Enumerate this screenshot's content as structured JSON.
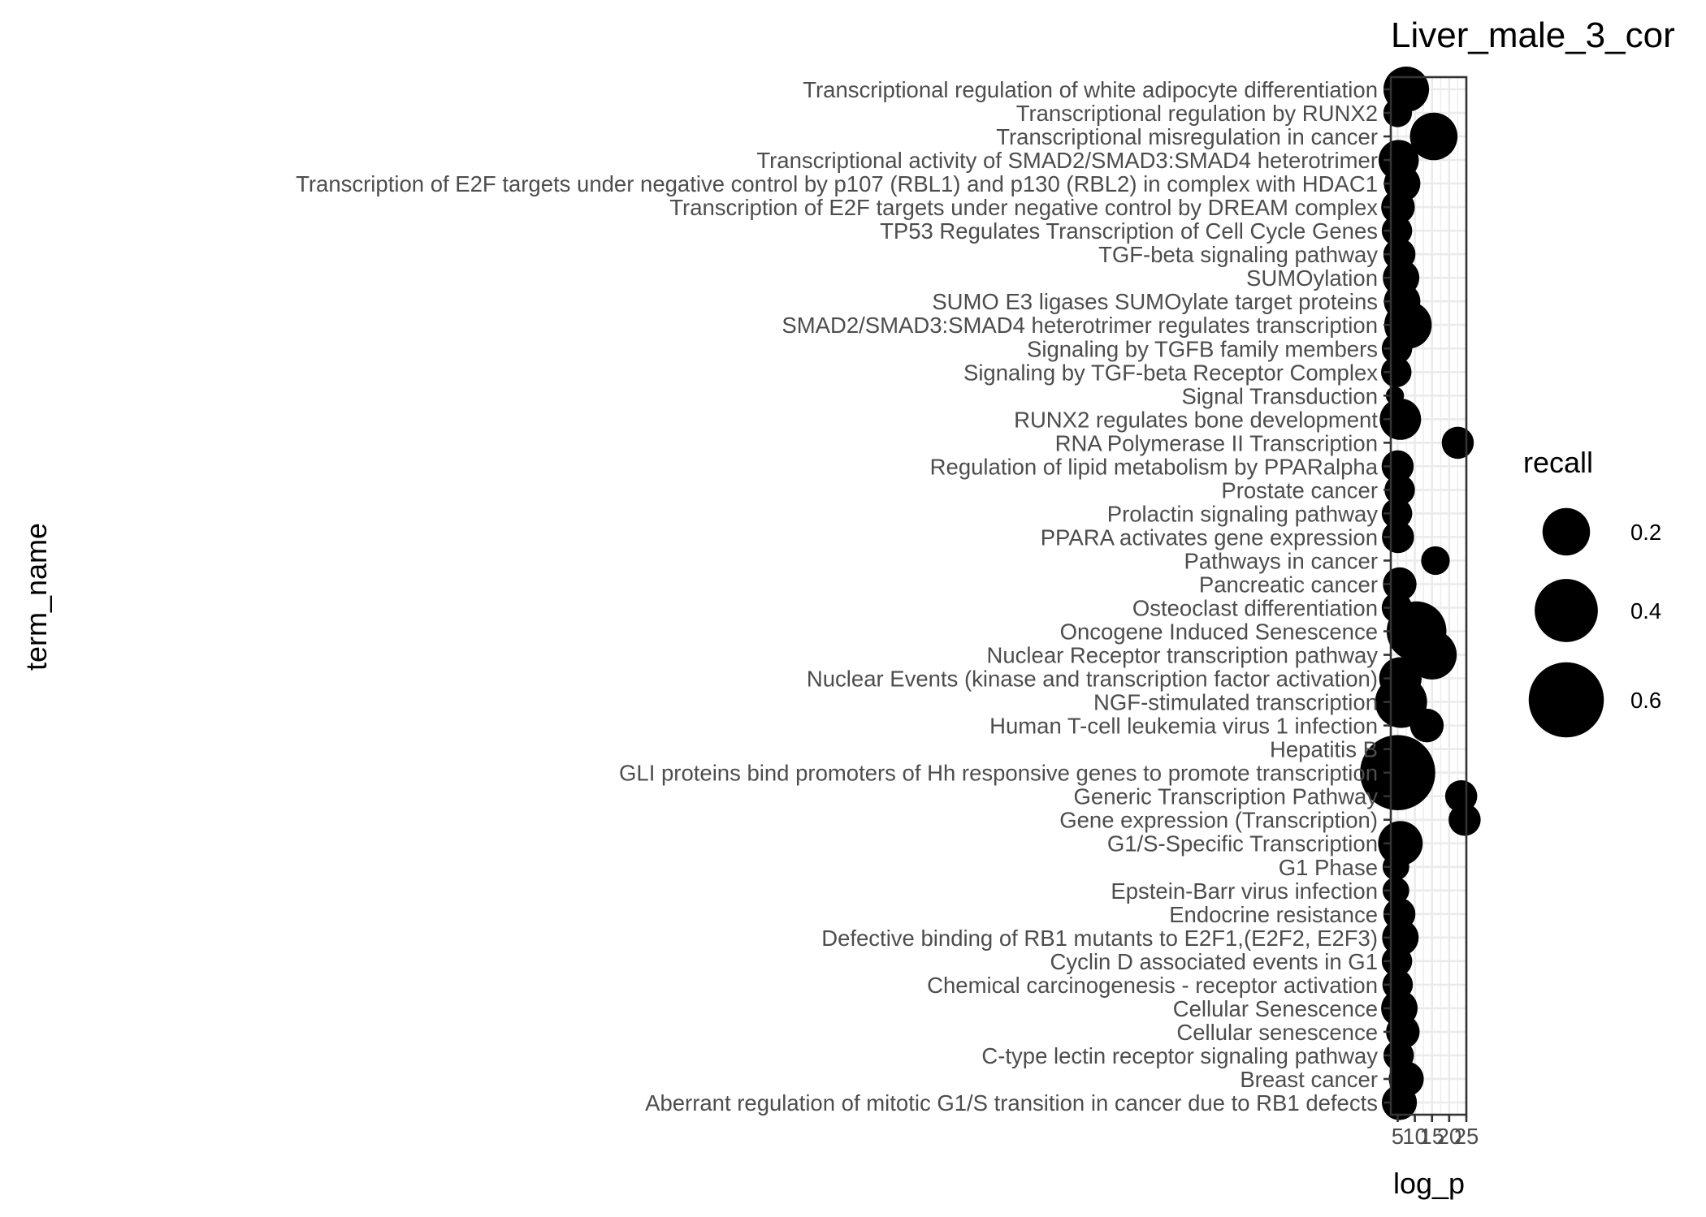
{
  "chart_data": {
    "type": "scatter",
    "title": "Liver_male_3_cor",
    "xlabel": "log_p",
    "ylabel": "term_name",
    "xlim": [
      3,
      25
    ],
    "x_ticks": [
      5,
      10,
      15,
      20,
      25
    ],
    "x_tick_labels": [
      "5",
      "10",
      "15",
      "20",
      "25"
    ],
    "grid": true,
    "size_variable": "recall",
    "legend": {
      "title": "recall",
      "position": "right",
      "entries": [
        {
          "label": "0.2",
          "value": 0.2
        },
        {
          "label": "0.4",
          "value": 0.4
        },
        {
          "label": "0.6",
          "value": 0.6
        }
      ]
    },
    "points": [
      {
        "term": "Transcriptional regulation of white adipocyte differentiation",
        "log_p": 7.5,
        "recall": 0.18
      },
      {
        "term": "Transcriptional regulation by RUNX2",
        "log_p": 5.0,
        "recall": 0.05
      },
      {
        "term": "Transcriptional misregulation in cancer",
        "log_p": 15.5,
        "recall": 0.2
      },
      {
        "term": "Transcriptional activity of SMAD2/SMAD3:SMAD4 heterotrimer",
        "log_p": 5.3,
        "recall": 0.13
      },
      {
        "term": "Transcription of E2F targets under negative control by p107 (RBL1) and p130 (RBL2) in complex with HDAC1",
        "log_p": 6.3,
        "recall": 0.1
      },
      {
        "term": "Transcription of E2F targets under negative control by DREAM complex",
        "log_p": 5.1,
        "recall": 0.08
      },
      {
        "term": "TP53 Regulates Transcription of Cell Cycle Genes",
        "log_p": 4.8,
        "recall": 0.06
      },
      {
        "term": "TGF-beta signaling pathway",
        "log_p": 5.5,
        "recall": 0.07
      },
      {
        "term": "SUMOylation",
        "log_p": 6.0,
        "recall": 0.1
      },
      {
        "term": "SUMO E3 ligases SUMOylate target proteins",
        "log_p": 6.3,
        "recall": 0.1
      },
      {
        "term": "SMAD2/SMAD3:SMAD4 heterotrimer regulates transcription",
        "log_p": 8.0,
        "recall": 0.2
      },
      {
        "term": "Signaling by TGFB family members",
        "log_p": 4.8,
        "recall": 0.06
      },
      {
        "term": "Signaling by TGF-beta Receptor Complex",
        "log_p": 4.6,
        "recall": 0.06
      },
      {
        "term": "Signal Transduction",
        "log_p": 4.2,
        "recall": 0.01
      },
      {
        "term": "RUNX2 regulates bone development",
        "log_p": 5.8,
        "recall": 0.14
      },
      {
        "term": "RNA Polymerase II Transcription",
        "log_p": 22.5,
        "recall": 0.07
      },
      {
        "term": "Regulation of lipid metabolism by PPARalpha",
        "log_p": 5.0,
        "recall": 0.07
      },
      {
        "term": "Prostate cancer",
        "log_p": 5.6,
        "recall": 0.06
      },
      {
        "term": "Prolactin signaling pathway",
        "log_p": 4.8,
        "recall": 0.06
      },
      {
        "term": "PPARA activates gene expression",
        "log_p": 5.1,
        "recall": 0.07
      },
      {
        "term": "Pathways in cancer",
        "log_p": 16.0,
        "recall": 0.05
      },
      {
        "term": "Pancreatic cancer",
        "log_p": 5.6,
        "recall": 0.08
      },
      {
        "term": "Osteoclast differentiation",
        "log_p": 4.8,
        "recall": 0.06
      },
      {
        "term": "Oncogene Induced Senescence",
        "log_p": 10.5,
        "recall": 0.35
      },
      {
        "term": "Nuclear Receptor transcription pathway",
        "log_p": 15.0,
        "recall": 0.22
      },
      {
        "term": "Nuclear Events (kinase and transcription factor activation)",
        "log_p": 5.8,
        "recall": 0.15
      },
      {
        "term": "NGF-stimulated transcription",
        "log_p": 6.0,
        "recall": 0.25
      },
      {
        "term": "Human T-cell leukemia virus 1 infection",
        "log_p": 13.5,
        "recall": 0.08
      },
      {
        "term": "Hepatitis B",
        "log_p": 4.0,
        "recall": 0.03
      },
      {
        "term": "GLI proteins bind promoters of Hh responsive genes to promote transcription",
        "log_p": 5.0,
        "recall": 0.6
      },
      {
        "term": "Generic Transcription Pathway",
        "log_p": 23.5,
        "recall": 0.07
      },
      {
        "term": "Gene expression (Transcription)",
        "log_p": 24.5,
        "recall": 0.07
      },
      {
        "term": "G1/S-Specific Transcription",
        "log_p": 5.8,
        "recall": 0.17
      },
      {
        "term": "G1 Phase",
        "log_p": 4.5,
        "recall": 0.04
      },
      {
        "term": "Epstein-Barr virus infection",
        "log_p": 4.5,
        "recall": 0.04
      },
      {
        "term": "Endocrine resistance",
        "log_p": 5.5,
        "recall": 0.07
      },
      {
        "term": "Defective binding of RB1 mutants to E2F1,(E2F2, E2F3)",
        "log_p": 5.8,
        "recall": 0.1
      },
      {
        "term": "Cyclin D associated events in G1",
        "log_p": 4.8,
        "recall": 0.06
      },
      {
        "term": "Chemical carcinogenesis - receptor activation",
        "log_p": 5.0,
        "recall": 0.06
      },
      {
        "term": "Cellular Senescence",
        "log_p": 5.5,
        "recall": 0.1
      },
      {
        "term": "Cellular senescence",
        "log_p": 6.5,
        "recall": 0.08
      },
      {
        "term": "C-type lectin receptor signaling pathway",
        "log_p": 5.3,
        "recall": 0.06
      },
      {
        "term": "Breast cancer",
        "log_p": 7.5,
        "recall": 0.09
      },
      {
        "term": "Aberrant regulation of mitotic G1/S transition in cancer due to RB1 defects",
        "log_p": 5.5,
        "recall": 0.09
      }
    ]
  }
}
